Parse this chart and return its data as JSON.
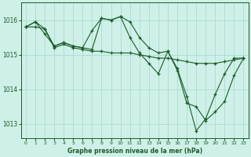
{
  "background_color": "#cff0e8",
  "grid_color": "#a0d8cc",
  "line_color": "#1a5c28",
  "title": "Graphe pression niveau de la mer (hPa)",
  "xlim": [
    -0.5,
    23.5
  ],
  "ylim": [
    1012.6,
    1016.5
  ],
  "yticks": [
    1013,
    1014,
    1015,
    1016
  ],
  "xticks": [
    0,
    1,
    2,
    3,
    4,
    5,
    6,
    7,
    8,
    9,
    10,
    11,
    12,
    13,
    14,
    15,
    16,
    17,
    18,
    19,
    20,
    21,
    22,
    23
  ],
  "line1_x": [
    0,
    1,
    2,
    3,
    4,
    5,
    6,
    7,
    8,
    9,
    10,
    11,
    12,
    13,
    14,
    15,
    16,
    17,
    18,
    19,
    20,
    21,
    22,
    23
  ],
  "line1_y": [
    1015.8,
    1015.95,
    1015.75,
    1015.25,
    1015.35,
    1015.25,
    1015.2,
    1015.7,
    1016.05,
    1016.0,
    1016.1,
    1015.95,
    1015.5,
    1015.2,
    1015.05,
    1015.1,
    1014.55,
    1013.6,
    1013.5,
    1013.1,
    1013.35,
    1013.65,
    1014.4,
    1014.9
  ],
  "line2_x": [
    0,
    1,
    2,
    3,
    4,
    5,
    6,
    7,
    8,
    9,
    10,
    11,
    12,
    13,
    14,
    15,
    16,
    17,
    18,
    19,
    20,
    21,
    22,
    23
  ],
  "line2_y": [
    1015.8,
    1015.95,
    1015.6,
    1015.25,
    1015.35,
    1015.25,
    1015.2,
    1015.15,
    1016.05,
    1016.0,
    1016.1,
    1015.5,
    1015.05,
    1014.75,
    1014.45,
    1015.1,
    1014.6,
    1013.8,
    1012.8,
    1013.15,
    1013.85,
    1014.45,
    1014.9,
    1014.9
  ],
  "line3_x": [
    0,
    1,
    2,
    3,
    4,
    5,
    6,
    7,
    8,
    9,
    10,
    11,
    12,
    13,
    14,
    15,
    16,
    17,
    18,
    19,
    20,
    21,
    22,
    23
  ],
  "line3_y": [
    1015.8,
    1015.8,
    1015.75,
    1015.2,
    1015.3,
    1015.2,
    1015.15,
    1015.1,
    1015.1,
    1015.05,
    1015.05,
    1015.05,
    1015.0,
    1014.95,
    1014.9,
    1014.9,
    1014.85,
    1014.8,
    1014.75,
    1014.75,
    1014.75,
    1014.8,
    1014.85,
    1014.9
  ]
}
